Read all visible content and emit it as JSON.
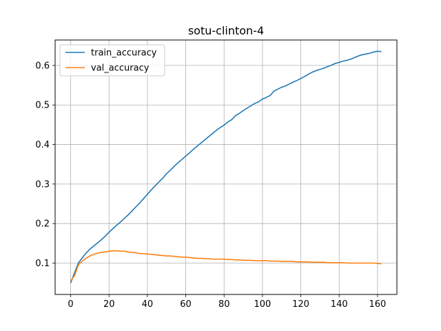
{
  "chart_data": {
    "type": "line",
    "title": "sotu-clinton-4",
    "xlabel": "",
    "ylabel": "",
    "xlim": [
      -8.1,
      170.1
    ],
    "ylim": [
      0.0206,
      0.6644
    ],
    "xticks": [
      0,
      20,
      40,
      60,
      80,
      100,
      120,
      140,
      160
    ],
    "yticks": [
      0.1,
      0.2,
      0.3,
      0.4,
      0.5,
      0.6
    ],
    "grid": true,
    "legend": "top-left",
    "series": [
      {
        "name": "train_accuracy",
        "color": "#1f77b4",
        "x": [
          0,
          2,
          4,
          6,
          8,
          10,
          12,
          14,
          16,
          18,
          20,
          22,
          24,
          26,
          28,
          30,
          32,
          34,
          36,
          38,
          40,
          42,
          44,
          46,
          48,
          50,
          52,
          54,
          56,
          58,
          60,
          62,
          64,
          66,
          68,
          70,
          72,
          74,
          76,
          78,
          80,
          82,
          84,
          86,
          88,
          90,
          92,
          94,
          96,
          98,
          100,
          102,
          104,
          106,
          108,
          110,
          112,
          114,
          116,
          118,
          120,
          122,
          124,
          126,
          128,
          130,
          132,
          134,
          136,
          138,
          140,
          142,
          144,
          146,
          148,
          150,
          152,
          154,
          156,
          158,
          160,
          162
        ],
        "y": [
          0.05,
          0.075,
          0.1,
          0.113,
          0.125,
          0.135,
          0.143,
          0.151,
          0.159,
          0.168,
          0.178,
          0.187,
          0.196,
          0.204,
          0.213,
          0.222,
          0.232,
          0.242,
          0.252,
          0.263,
          0.274,
          0.285,
          0.295,
          0.305,
          0.315,
          0.326,
          0.335,
          0.345,
          0.354,
          0.362,
          0.371,
          0.379,
          0.388,
          0.396,
          0.404,
          0.412,
          0.42,
          0.428,
          0.436,
          0.443,
          0.449,
          0.457,
          0.463,
          0.473,
          0.479,
          0.486,
          0.492,
          0.498,
          0.504,
          0.508,
          0.515,
          0.519,
          0.524,
          0.535,
          0.54,
          0.545,
          0.548,
          0.553,
          0.558,
          0.562,
          0.567,
          0.572,
          0.578,
          0.583,
          0.587,
          0.59,
          0.593,
          0.597,
          0.601,
          0.605,
          0.608,
          0.611,
          0.613,
          0.616,
          0.62,
          0.624,
          0.627,
          0.629,
          0.631,
          0.634,
          0.636,
          0.635
        ]
      },
      {
        "name": "val_accuracy",
        "color": "#ff7f0e",
        "x": [
          0,
          2,
          4,
          6,
          8,
          10,
          12,
          14,
          16,
          18,
          20,
          22,
          24,
          26,
          28,
          30,
          32,
          34,
          36,
          38,
          40,
          42,
          44,
          46,
          48,
          50,
          52,
          54,
          56,
          58,
          60,
          62,
          64,
          66,
          68,
          70,
          72,
          74,
          76,
          78,
          80,
          82,
          84,
          86,
          88,
          90,
          92,
          94,
          96,
          98,
          100,
          102,
          104,
          106,
          108,
          110,
          112,
          114,
          116,
          118,
          120,
          122,
          124,
          126,
          128,
          130,
          132,
          134,
          136,
          138,
          140,
          142,
          144,
          146,
          148,
          150,
          152,
          154,
          156,
          158,
          160,
          162
        ],
        "y": [
          0.055,
          0.068,
          0.095,
          0.105,
          0.112,
          0.118,
          0.122,
          0.125,
          0.127,
          0.128,
          0.13,
          0.131,
          0.131,
          0.13,
          0.13,
          0.128,
          0.127,
          0.126,
          0.124,
          0.124,
          0.123,
          0.122,
          0.121,
          0.12,
          0.119,
          0.118,
          0.118,
          0.117,
          0.116,
          0.115,
          0.115,
          0.114,
          0.113,
          0.112,
          0.112,
          0.111,
          0.111,
          0.11,
          0.11,
          0.11,
          0.11,
          0.109,
          0.109,
          0.108,
          0.108,
          0.107,
          0.107,
          0.107,
          0.106,
          0.106,
          0.106,
          0.106,
          0.105,
          0.105,
          0.105,
          0.104,
          0.104,
          0.104,
          0.104,
          0.103,
          0.103,
          0.103,
          0.103,
          0.102,
          0.102,
          0.102,
          0.102,
          0.101,
          0.101,
          0.101,
          0.101,
          0.101,
          0.1,
          0.1,
          0.1,
          0.1,
          0.1,
          0.1,
          0.1,
          0.1,
          0.099,
          0.098
        ]
      }
    ]
  }
}
